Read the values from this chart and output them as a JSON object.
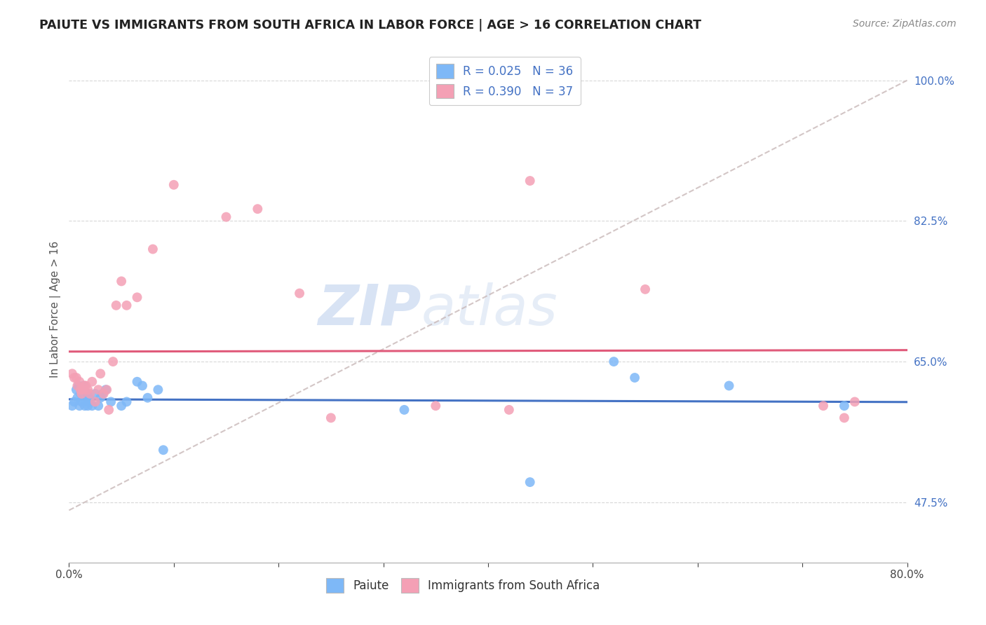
{
  "title": "PAIUTE VS IMMIGRANTS FROM SOUTH AFRICA IN LABOR FORCE | AGE > 16 CORRELATION CHART",
  "source": "Source: ZipAtlas.com",
  "ylabel_label": "In Labor Force | Age > 16",
  "R_paiute": 0.025,
  "N_paiute": 36,
  "R_immigrant": 0.39,
  "N_immigrant": 37,
  "color_paiute": "#7eb8f7",
  "color_immigrant": "#f4a0b5",
  "color_trend_paiute": "#4472c4",
  "color_trend_immigrant": "#e05a7a",
  "color_trend_dashed": "#c8b8b8",
  "watermark_color": "#d0dff0",
  "xlim": [
    0.0,
    0.8
  ],
  "ylim": [
    0.4,
    1.03
  ],
  "ytick_positions": [
    0.475,
    0.65,
    0.825,
    1.0
  ],
  "ytick_labels": [
    "47.5%",
    "65.0%",
    "82.5%",
    "100.0%"
  ],
  "xtick_positions": [
    0.0,
    0.1,
    0.2,
    0.3,
    0.4,
    0.5,
    0.6,
    0.7,
    0.8
  ],
  "xtick_labels": [
    "0.0%",
    "",
    "",
    "",
    "",
    "",
    "",
    "",
    "80.0%"
  ],
  "paiute_x": [
    0.003,
    0.005,
    0.007,
    0.008,
    0.009,
    0.01,
    0.011,
    0.012,
    0.013,
    0.014,
    0.015,
    0.016,
    0.017,
    0.018,
    0.019,
    0.02,
    0.022,
    0.025,
    0.028,
    0.03,
    0.032,
    0.035,
    0.04,
    0.05,
    0.055,
    0.065,
    0.07,
    0.075,
    0.085,
    0.09,
    0.32,
    0.44,
    0.52,
    0.54,
    0.63,
    0.74
  ],
  "paiute_y": [
    0.595,
    0.6,
    0.615,
    0.605,
    0.62,
    0.595,
    0.61,
    0.6,
    0.615,
    0.62,
    0.595,
    0.6,
    0.61,
    0.595,
    0.605,
    0.6,
    0.595,
    0.61,
    0.595,
    0.605,
    0.61,
    0.615,
    0.6,
    0.595,
    0.6,
    0.625,
    0.62,
    0.605,
    0.615,
    0.54,
    0.59,
    0.5,
    0.65,
    0.63,
    0.62,
    0.595
  ],
  "immigrant_x": [
    0.003,
    0.005,
    0.007,
    0.008,
    0.01,
    0.011,
    0.012,
    0.013,
    0.015,
    0.016,
    0.018,
    0.02,
    0.022,
    0.025,
    0.028,
    0.03,
    0.033,
    0.036,
    0.038,
    0.042,
    0.045,
    0.05,
    0.055,
    0.065,
    0.08,
    0.1,
    0.15,
    0.18,
    0.22,
    0.25,
    0.35,
    0.42,
    0.44,
    0.55,
    0.72,
    0.74,
    0.75
  ],
  "immigrant_y": [
    0.635,
    0.63,
    0.63,
    0.62,
    0.625,
    0.615,
    0.61,
    0.615,
    0.62,
    0.62,
    0.615,
    0.61,
    0.625,
    0.6,
    0.615,
    0.635,
    0.61,
    0.615,
    0.59,
    0.65,
    0.72,
    0.75,
    0.72,
    0.73,
    0.79,
    0.87,
    0.83,
    0.84,
    0.735,
    0.58,
    0.595,
    0.59,
    0.875,
    0.74,
    0.595,
    0.58,
    0.6
  ],
  "dashed_line_x": [
    0.0,
    0.8
  ],
  "dashed_line_y": [
    0.465,
    1.0
  ]
}
